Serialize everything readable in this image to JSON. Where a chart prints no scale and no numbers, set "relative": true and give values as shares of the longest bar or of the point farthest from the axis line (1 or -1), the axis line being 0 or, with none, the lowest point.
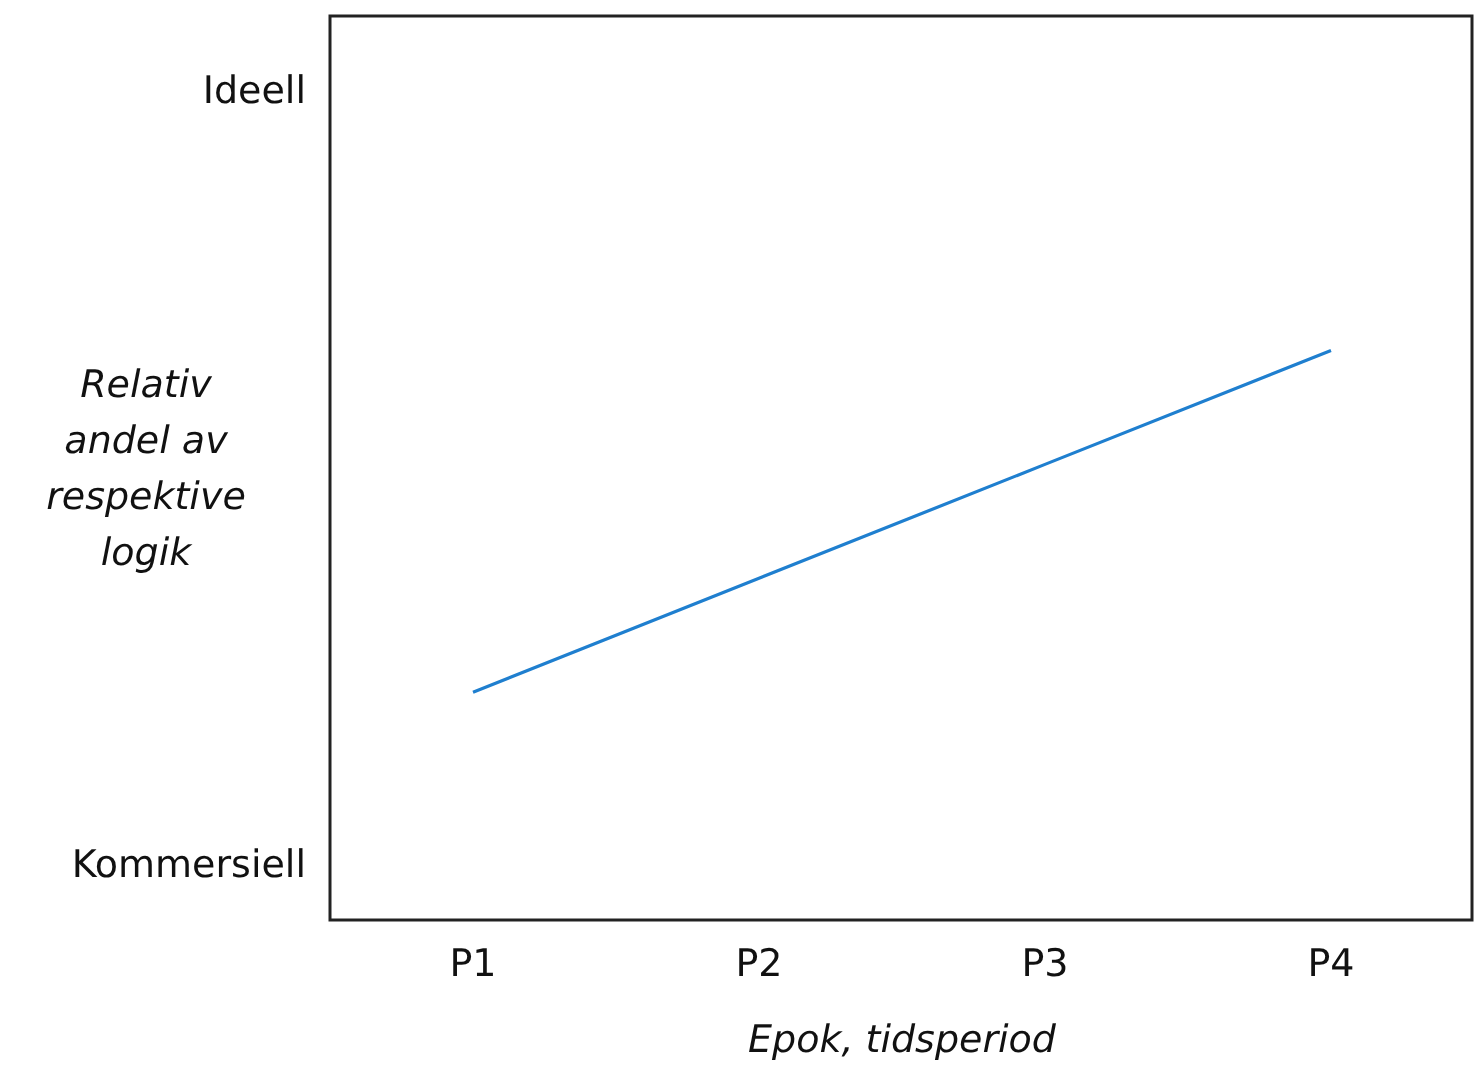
{
  "chart_data": {
    "type": "line",
    "xlabel": "Epok, tidsperiod",
    "ylabel": "Relativ andel av respektive logik",
    "categories": [
      "P1",
      "P2",
      "P3",
      "P4"
    ],
    "relative": true,
    "annotations": [
      "Ideell",
      "Kommersiell"
    ],
    "series": [
      {
        "color": "#1f7fcf",
        "values": [
          0.4,
          0.6,
          0.8,
          1
        ]
      }
    ],
    "grid": false,
    "marker": "none",
    "line_style": "solid"
  }
}
